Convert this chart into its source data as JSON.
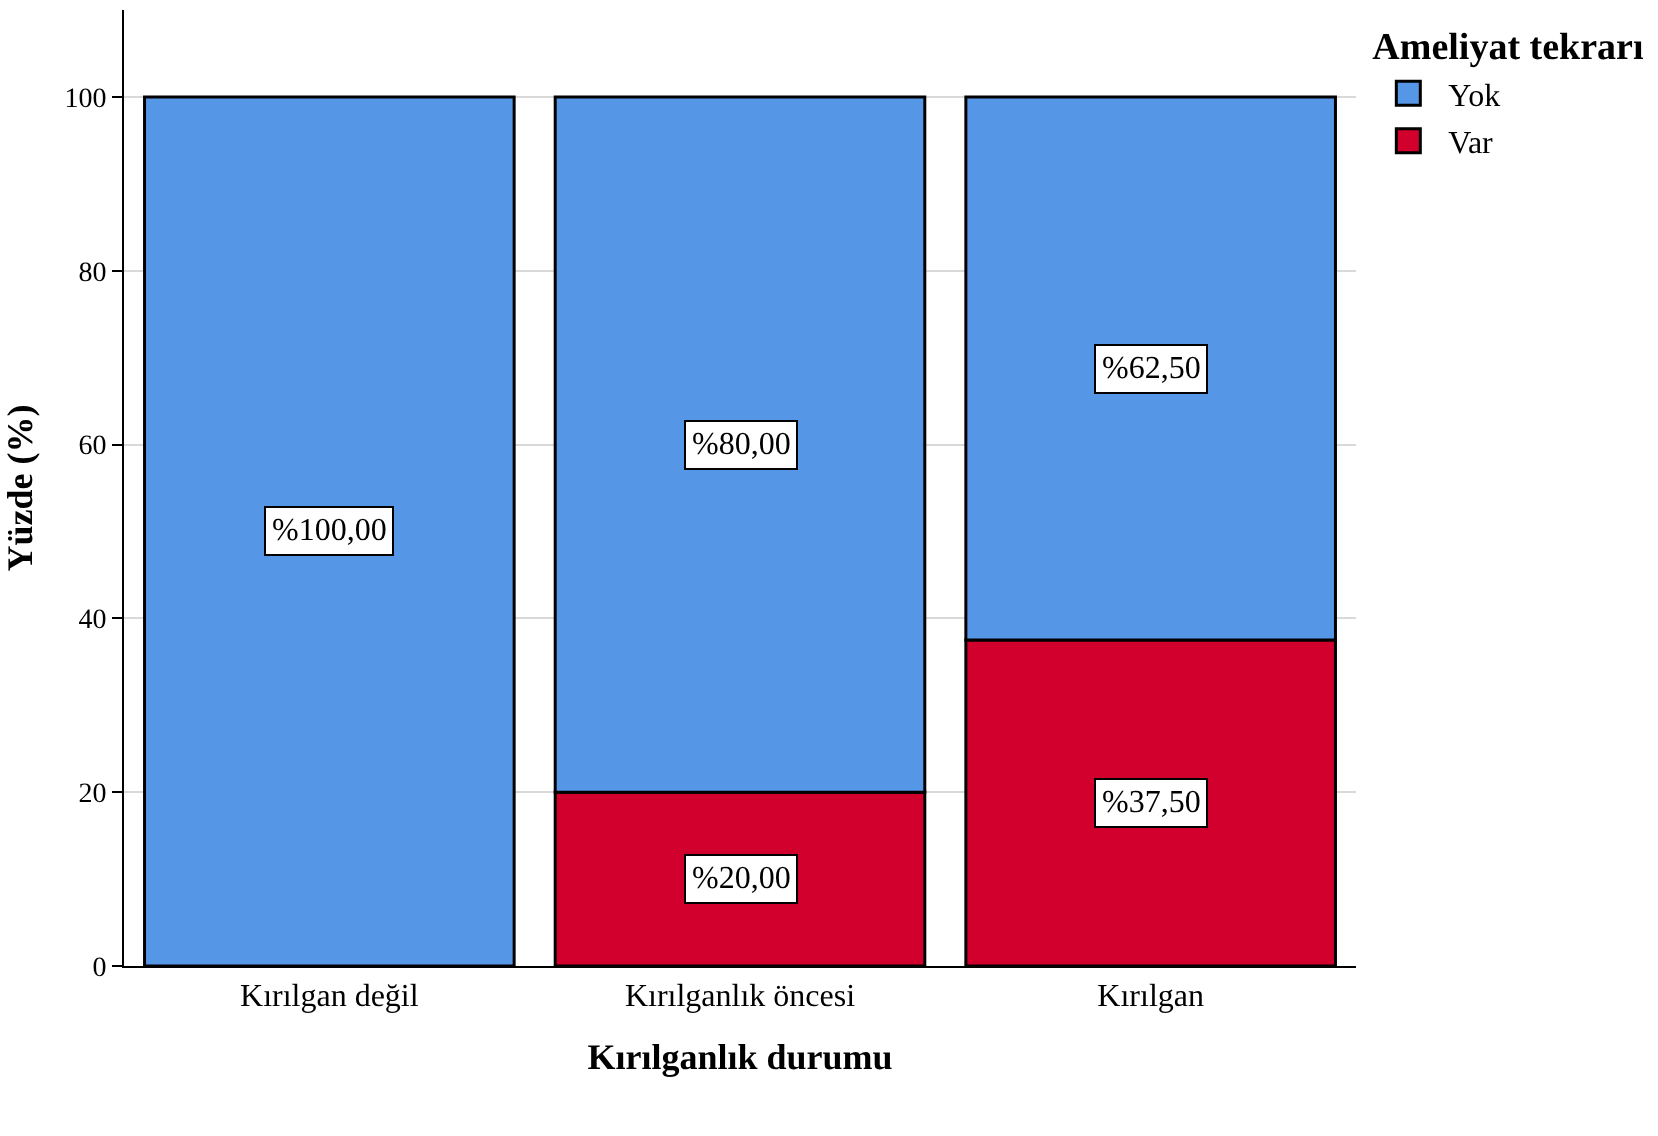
{
  "chart_data": {
    "type": "bar",
    "stacked": true,
    "xlabel": "Kırılganlık durumu",
    "ylabel": "Yüzde (%)",
    "legend_title": "Ameliyat tekrarı",
    "categories": [
      "Kırılgan değil",
      "Kırılganlık öncesi",
      "Kırılgan"
    ],
    "series": [
      {
        "name": "Var",
        "color": "#d2002d",
        "values": [
          null,
          20,
          37.5
        ],
        "value_labels": [
          null,
          "%20,00",
          "%37,50"
        ]
      },
      {
        "name": "Yok",
        "color": "#5596e6",
        "values": [
          100,
          80,
          62.5
        ],
        "value_labels": [
          "%100,00",
          "%80,00",
          "%62,50"
        ]
      }
    ],
    "ylim": [
      0,
      110
    ],
    "yticks": [
      0,
      20,
      40,
      60,
      80,
      100
    ],
    "grid": "y",
    "legend": "top right"
  }
}
